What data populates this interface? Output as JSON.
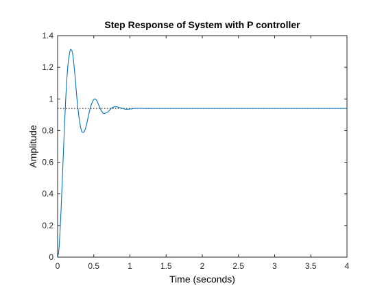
{
  "chart_data": {
    "type": "line",
    "title": "Step Response of System with P controller",
    "xlabel": "Time (seconds)",
    "ylabel": "Amplitude",
    "xlim": [
      0,
      4
    ],
    "ylim": [
      0,
      1.4
    ],
    "xticks": [
      0,
      0.5,
      1,
      1.5,
      2,
      2.5,
      3,
      3.5,
      4
    ],
    "xtick_labels": [
      "0",
      "0.5",
      "1",
      "1.5",
      "2",
      "2.5",
      "3",
      "3.5",
      "4"
    ],
    "yticks": [
      0,
      0.2,
      0.4,
      0.6,
      0.8,
      1,
      1.2,
      1.4
    ],
    "ytick_labels": [
      "0",
      "0.2",
      "0.4",
      "0.6",
      "0.8",
      "1",
      "1.2",
      "1.4"
    ],
    "grid": false,
    "legend": "none",
    "final_value": 0.94,
    "series": [
      {
        "color": "#0072bd",
        "x": [
          0,
          0.02,
          0.05,
          0.08,
          0.11,
          0.14,
          0.17,
          0.19,
          0.21,
          0.24,
          0.27,
          0.3,
          0.33,
          0.36,
          0.39,
          0.42,
          0.45,
          0.48,
          0.51,
          0.54,
          0.57,
          0.6,
          0.63,
          0.66,
          0.7,
          0.74,
          0.78,
          0.82,
          0.86,
          0.9,
          0.94,
          0.98,
          1.02,
          1.06,
          1.1,
          1.15,
          1.2,
          1.3,
          1.4,
          1.6,
          2.0,
          2.5,
          3.0,
          3.5,
          4.0
        ],
        "y": [
          0,
          0.06,
          0.32,
          0.66,
          0.98,
          1.2,
          1.3,
          1.31,
          1.28,
          1.15,
          0.99,
          0.87,
          0.8,
          0.79,
          0.82,
          0.88,
          0.94,
          0.98,
          1.0,
          0.99,
          0.96,
          0.93,
          0.91,
          0.91,
          0.92,
          0.94,
          0.95,
          0.95,
          0.945,
          0.94,
          0.935,
          0.935,
          0.937,
          0.94,
          0.941,
          0.941,
          0.94,
          0.94,
          0.94,
          0.94,
          0.94,
          0.94,
          0.94,
          0.94,
          0.94
        ]
      }
    ]
  }
}
